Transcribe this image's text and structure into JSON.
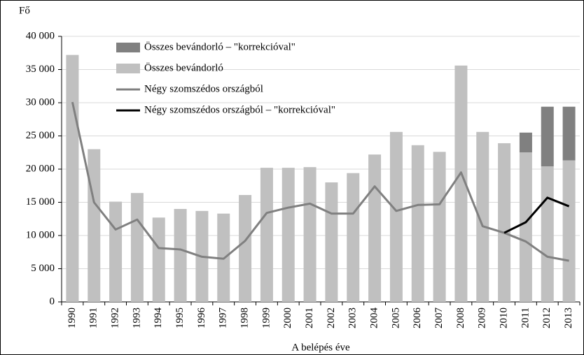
{
  "chart_data": {
    "type": "bar",
    "y_unit_label": "Fő",
    "x_label": "A belépés éve",
    "categories": [
      "1990",
      "1991",
      "1992",
      "1993",
      "1994",
      "1995",
      "1996",
      "1997",
      "1998",
      "1999",
      "2000",
      "2001",
      "2002",
      "2003",
      "2004",
      "2005",
      "2006",
      "2007",
      "2008",
      "2009",
      "2010",
      "2011",
      "2012",
      "2013"
    ],
    "series": [
      {
        "name": "Összes bevándorló – \"korrekcióval\"",
        "type": "bar",
        "stack_on": 1,
        "color": "#808080",
        "values": [
          null,
          null,
          null,
          null,
          null,
          null,
          null,
          null,
          null,
          null,
          null,
          null,
          null,
          null,
          null,
          null,
          null,
          null,
          null,
          null,
          null,
          3000,
          9000,
          8100
        ]
      },
      {
        "name": "Összes bevándorló",
        "type": "bar",
        "color": "#c0c0c0",
        "values": [
          37200,
          23000,
          15100,
          16400,
          12700,
          14000,
          13700,
          13300,
          16100,
          20200,
          20200,
          20300,
          18000,
          19400,
          22200,
          25600,
          23600,
          22600,
          35600,
          25600,
          23900,
          22500,
          20400,
          21300
        ]
      },
      {
        "name": "Négy szomszédos országból",
        "type": "line",
        "color": "#808080",
        "values": [
          30100,
          15000,
          10900,
          12400,
          8100,
          7900,
          6800,
          6500,
          9200,
          13400,
          14200,
          14800,
          13300,
          13300,
          17400,
          13700,
          14600,
          14700,
          19500,
          11400,
          10400,
          9100,
          6800,
          6200
        ]
      },
      {
        "name": "Négy szomszédos országból – \"korrekcióval\"",
        "type": "line",
        "color": "#000000",
        "values": [
          null,
          null,
          null,
          null,
          null,
          null,
          null,
          null,
          null,
          null,
          null,
          null,
          null,
          null,
          null,
          null,
          null,
          null,
          null,
          null,
          10400,
          12000,
          15700,
          14400
        ]
      }
    ],
    "ylim": [
      0,
      40000
    ],
    "yticks": [
      0,
      {
        "value": 5000,
        "label": "5 000"
      },
      {
        "value": 10000,
        "label": "10 000"
      },
      {
        "value": 15000,
        "label": "15 000"
      },
      {
        "value": 20000,
        "label": "20 000"
      },
      {
        "value": 25000,
        "label": "25 000"
      },
      {
        "value": 30000,
        "label": "30 000"
      },
      {
        "value": 35000,
        "label": "35 000"
      },
      {
        "value": 40000,
        "label": "40 000"
      }
    ],
    "grid": true,
    "legend": "top-left"
  }
}
